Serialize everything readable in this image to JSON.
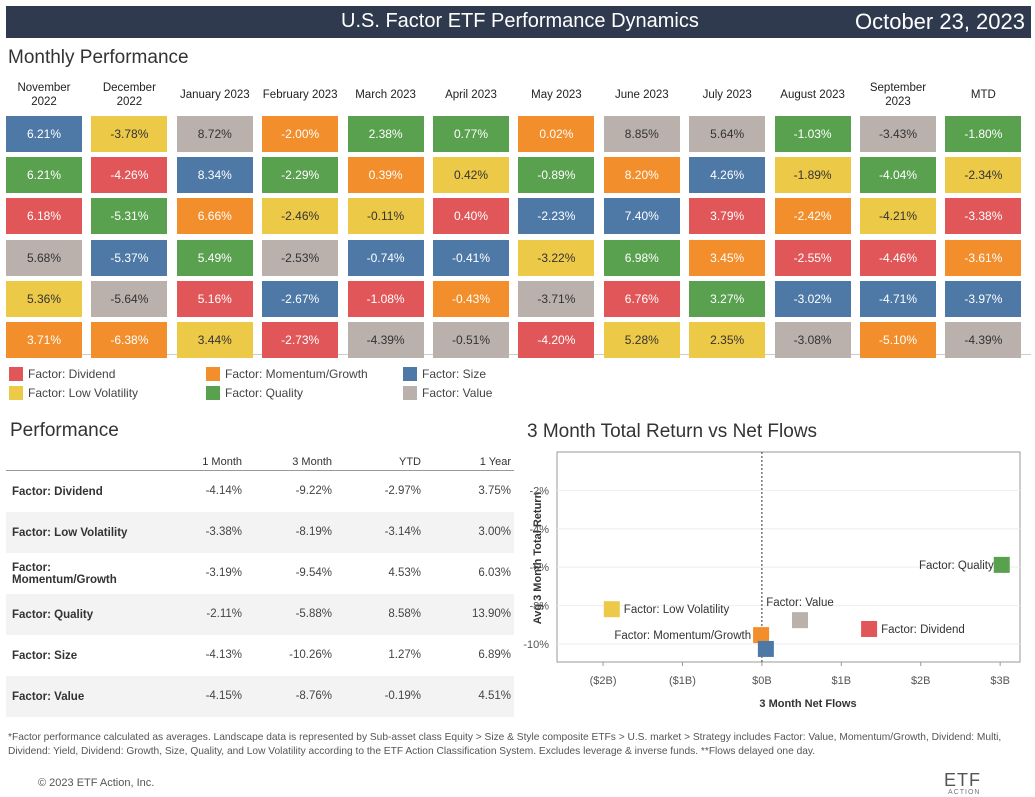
{
  "header": {
    "title": "U.S. Factor ETF Performance Dynamics",
    "date": "October 23, 2023"
  },
  "monthly": {
    "title": "Monthly Performance",
    "columns": [
      {
        "month": "November 2022",
        "cells": [
          {
            "text": "6.21%",
            "color": "#4e79a7"
          },
          {
            "text": "6.21%",
            "color": "#59a14f"
          },
          {
            "text": "6.18%",
            "color": "#e15759"
          },
          {
            "text": "5.68%",
            "color": "#bab0ac"
          },
          {
            "text": "5.36%",
            "color": "#edc948"
          },
          {
            "text": "3.71%",
            "color": "#f28e2b"
          }
        ]
      },
      {
        "month": "December 2022",
        "cells": [
          {
            "text": "-3.78%",
            "color": "#edc948"
          },
          {
            "text": "-4.26%",
            "color": "#e15759"
          },
          {
            "text": "-5.31%",
            "color": "#59a14f"
          },
          {
            "text": "-5.37%",
            "color": "#4e79a7"
          },
          {
            "text": "-5.64%",
            "color": "#bab0ac"
          },
          {
            "text": "-6.38%",
            "color": "#f28e2b"
          }
        ]
      },
      {
        "month": "January 2023",
        "cells": [
          {
            "text": "8.72%",
            "color": "#bab0ac"
          },
          {
            "text": "8.34%",
            "color": "#4e79a7"
          },
          {
            "text": "6.66%",
            "color": "#f28e2b"
          },
          {
            "text": "5.49%",
            "color": "#59a14f"
          },
          {
            "text": "5.16%",
            "color": "#e15759"
          },
          {
            "text": "3.44%",
            "color": "#edc948"
          }
        ]
      },
      {
        "month": "February 2023",
        "cells": [
          {
            "text": "-2.00%",
            "color": "#f28e2b"
          },
          {
            "text": "-2.29%",
            "color": "#59a14f"
          },
          {
            "text": "-2.46%",
            "color": "#edc948"
          },
          {
            "text": "-2.53%",
            "color": "#bab0ac"
          },
          {
            "text": "-2.67%",
            "color": "#4e79a7"
          },
          {
            "text": "-2.73%",
            "color": "#e15759"
          }
        ]
      },
      {
        "month": "March 2023",
        "cells": [
          {
            "text": "2.38%",
            "color": "#59a14f"
          },
          {
            "text": "0.39%",
            "color": "#f28e2b"
          },
          {
            "text": "-0.11%",
            "color": "#edc948"
          },
          {
            "text": "-0.74%",
            "color": "#4e79a7"
          },
          {
            "text": "-1.08%",
            "color": "#e15759"
          },
          {
            "text": "-4.39%",
            "color": "#bab0ac"
          }
        ]
      },
      {
        "month": "April 2023",
        "cells": [
          {
            "text": "0.77%",
            "color": "#59a14f"
          },
          {
            "text": "0.42%",
            "color": "#edc948"
          },
          {
            "text": "0.40%",
            "color": "#e15759"
          },
          {
            "text": "-0.41%",
            "color": "#4e79a7"
          },
          {
            "text": "-0.43%",
            "color": "#f28e2b"
          },
          {
            "text": "-0.51%",
            "color": "#bab0ac"
          }
        ]
      },
      {
        "month": "May 2023",
        "cells": [
          {
            "text": "0.02%",
            "color": "#f28e2b"
          },
          {
            "text": "-0.89%",
            "color": "#59a14f"
          },
          {
            "text": "-2.23%",
            "color": "#4e79a7"
          },
          {
            "text": "-3.22%",
            "color": "#edc948"
          },
          {
            "text": "-3.71%",
            "color": "#bab0ac"
          },
          {
            "text": "-4.20%",
            "color": "#e15759"
          }
        ]
      },
      {
        "month": "June 2023",
        "cells": [
          {
            "text": "8.85%",
            "color": "#bab0ac"
          },
          {
            "text": "8.20%",
            "color": "#f28e2b"
          },
          {
            "text": "7.40%",
            "color": "#4e79a7"
          },
          {
            "text": "6.98%",
            "color": "#59a14f"
          },
          {
            "text": "6.76%",
            "color": "#e15759"
          },
          {
            "text": "5.28%",
            "color": "#edc948"
          }
        ]
      },
      {
        "month": "July 2023",
        "cells": [
          {
            "text": "5.64%",
            "color": "#bab0ac"
          },
          {
            "text": "4.26%",
            "color": "#4e79a7"
          },
          {
            "text": "3.79%",
            "color": "#e15759"
          },
          {
            "text": "3.45%",
            "color": "#f28e2b"
          },
          {
            "text": "3.27%",
            "color": "#59a14f"
          },
          {
            "text": "2.35%",
            "color": "#edc948"
          }
        ]
      },
      {
        "month": "August 2023",
        "cells": [
          {
            "text": "-1.03%",
            "color": "#59a14f"
          },
          {
            "text": "-1.89%",
            "color": "#edc948"
          },
          {
            "text": "-2.42%",
            "color": "#f28e2b"
          },
          {
            "text": "-2.55%",
            "color": "#e15759"
          },
          {
            "text": "-3.02%",
            "color": "#4e79a7"
          },
          {
            "text": "-3.08%",
            "color": "#bab0ac"
          }
        ]
      },
      {
        "month": "September 2023",
        "cells": [
          {
            "text": "-3.43%",
            "color": "#bab0ac"
          },
          {
            "text": "-4.04%",
            "color": "#59a14f"
          },
          {
            "text": "-4.21%",
            "color": "#edc948"
          },
          {
            "text": "-4.46%",
            "color": "#e15759"
          },
          {
            "text": "-4.71%",
            "color": "#4e79a7"
          },
          {
            "text": "-5.10%",
            "color": "#f28e2b"
          }
        ]
      },
      {
        "month": "MTD",
        "cells": [
          {
            "text": "-1.80%",
            "color": "#59a14f"
          },
          {
            "text": "-2.34%",
            "color": "#edc948"
          },
          {
            "text": "-3.38%",
            "color": "#e15759"
          },
          {
            "text": "-3.61%",
            "color": "#f28e2b"
          },
          {
            "text": "-3.97%",
            "color": "#4e79a7"
          },
          {
            "text": "-4.39%",
            "color": "#bab0ac"
          }
        ]
      }
    ],
    "legend": [
      {
        "name": "Factor: Dividend",
        "color": "#e15759"
      },
      {
        "name": "Factor: Momentum/Growth",
        "color": "#f28e2b"
      },
      {
        "name": "Factor: Size",
        "color": "#4e79a7"
      },
      {
        "name": "Factor: Low Volatility",
        "color": "#edc948"
      },
      {
        "name": "Factor: Quality",
        "color": "#59a14f"
      },
      {
        "name": "Factor: Value",
        "color": "#bab0ac"
      }
    ]
  },
  "performance": {
    "title": "Performance",
    "columns": [
      "1 Month",
      "3 Month",
      "YTD",
      "1 Year"
    ],
    "rows": [
      {
        "name": "Factor: Dividend",
        "cells": [
          "-4.14%",
          "-9.22%",
          "-2.97%",
          "3.75%"
        ]
      },
      {
        "name": "Factor: Low Volatility",
        "cells": [
          "-3.38%",
          "-8.19%",
          "-3.14%",
          "3.00%"
        ]
      },
      {
        "name": "Factor: Momentum/Growth",
        "cells": [
          "-3.19%",
          "-9.54%",
          "4.53%",
          "6.03%"
        ]
      },
      {
        "name": "Factor: Quality",
        "cells": [
          "-2.11%",
          "-5.88%",
          "8.58%",
          "13.90%"
        ]
      },
      {
        "name": "Factor: Size",
        "cells": [
          "-4.13%",
          "-10.26%",
          "1.27%",
          "6.89%"
        ]
      },
      {
        "name": "Factor: Value",
        "cells": [
          "-4.15%",
          "-8.76%",
          "-0.19%",
          "4.51%"
        ]
      }
    ]
  },
  "chart_data": {
    "type": "scatter",
    "title": "3 Month Total Return vs Net Flows",
    "x_label": "3 Month Net Flows",
    "y_label": "Avg 3 Month Total Return",
    "xlim": [
      -2.58,
      3.25
    ],
    "ylim": [
      -10.94,
      0
    ],
    "xticks": [
      {
        "value": -2,
        "label": "($2B)"
      },
      {
        "value": -1,
        "label": "($1B)"
      },
      {
        "value": 0,
        "label": "$0B"
      },
      {
        "value": 1,
        "label": "$1B"
      },
      {
        "value": 2,
        "label": "$2B"
      },
      {
        "value": 3,
        "label": "$3B"
      }
    ],
    "yticks": [
      {
        "value": -2,
        "label": "-2%"
      },
      {
        "value": -4,
        "label": "-4%"
      },
      {
        "value": -6,
        "label": "-6%"
      },
      {
        "value": -8,
        "label": "-8%"
      },
      {
        "value": -10,
        "label": "-10%"
      }
    ],
    "series": [
      {
        "name": "Factor: Quality",
        "color": "#59a14f",
        "x": [
          3.02
        ],
        "values": [
          -5.88
        ]
      },
      {
        "name": "Factor: Low Volatility",
        "color": "#edc948",
        "x": [
          -1.89
        ],
        "values": [
          -8.19
        ]
      },
      {
        "name": "Factor: Value",
        "color": "#bab0ac",
        "x": [
          0.48
        ],
        "values": [
          -8.76
        ]
      },
      {
        "name": "Factor: Momentum/Growth",
        "color": "#f28e2b",
        "x": [
          -0.01
        ],
        "values": [
          -9.54
        ]
      },
      {
        "name": "Factor: Dividend",
        "color": "#e15759",
        "x": [
          1.35
        ],
        "values": [
          -9.22
        ]
      },
      {
        "name": null,
        "color": "#4e79a7",
        "x": [
          0.05
        ],
        "values": [
          -10.26
        ]
      }
    ]
  },
  "footer": {
    "note": "*Factor performance calculated as averages. Landscape data is represented by Sub-asset class Equity > Size & Style composite ETFs > U.S. market > Strategy includes Factor: Value, Momentum/Growth, Dividend: Multi, Dividend: Yield, Dividend: Growth, Size, Quality, and Low Volatility according to the ETF Action Classification System. Excludes leverage & inverse funds. **Flows delayed one day.",
    "copyright": "© 2023 ETF Action, Inc.",
    "logo": "ETF",
    "logo_sub": "ACTION"
  }
}
